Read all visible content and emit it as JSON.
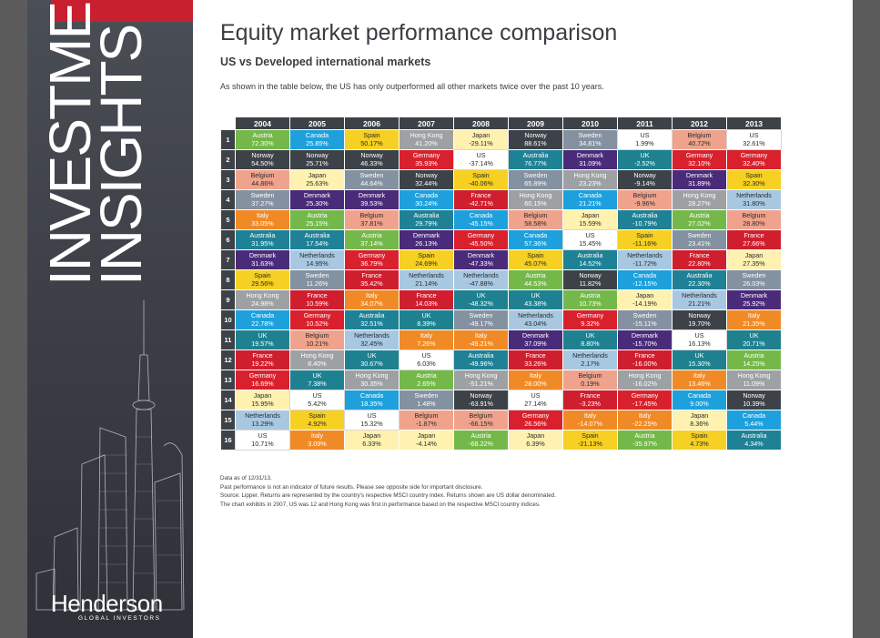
{
  "sidebar": {
    "title_line1": "INVESTMENT",
    "title_line2": "INSIGHTS",
    "logo_name": "Henderson",
    "logo_sub": "GLOBAL INVESTORS"
  },
  "header": {
    "title": "Equity market performance comparison",
    "subtitle": "US vs Developed international markets",
    "intro": "As shown in the table below, the US has only outperformed all other markets twice over the past 10 years."
  },
  "colors": {
    "Austria": "#74b84a",
    "Canada": "#1ea0dc",
    "Spain": "#f6d022",
    "Hong Kong": "#9ea1a4",
    "Japan": "#fff1b0",
    "Norway": "#3d4248",
    "Sweden": "#8491a0",
    "US": "#ffffff",
    "Belgium": "#f0a38c",
    "Germany": "#d8212d",
    "Australia": "#1f8195",
    "Denmark": "#4a2b7a",
    "UK": "#1f8190",
    "France": "#cf1f2e",
    "Italy": "#f08a26",
    "Netherlands": "#a8c8e2"
  },
  "years": [
    "2004",
    "2005",
    "2006",
    "2007",
    "2008",
    "2009",
    "2010",
    "2011",
    "2012",
    "2013"
  ],
  "ranks": [
    "1",
    "2",
    "3",
    "4",
    "5",
    "6",
    "7",
    "8",
    "9",
    "10",
    "11",
    "12",
    "13",
    "14",
    "15",
    "16"
  ],
  "table": [
    [
      [
        "Austria",
        "72.30%"
      ],
      [
        "Norway",
        "54.50%"
      ],
      [
        "Belgium",
        "44.86%"
      ],
      [
        "Sweden",
        "37.27%"
      ],
      [
        "Italy",
        "33.05%"
      ],
      [
        "Australia",
        "31.95%"
      ],
      [
        "Denmark",
        "31.63%"
      ],
      [
        "Spain",
        "29.56%"
      ],
      [
        "Hong Kong",
        "24.98%"
      ],
      [
        "Canada",
        "22.78%"
      ],
      [
        "UK",
        "19.57%"
      ],
      [
        "France",
        "19.22%"
      ],
      [
        "Germany",
        "16.69%"
      ],
      [
        "Japan",
        "15.95%"
      ],
      [
        "Netherlands",
        "13.29%"
      ],
      [
        "US",
        "10.71%"
      ]
    ],
    [
      [
        "Canada",
        "25.85%"
      ],
      [
        "Norway",
        "25.71%"
      ],
      [
        "Japan",
        "25.63%"
      ],
      [
        "Denmark",
        "25.30%"
      ],
      [
        "Austria",
        "25.15%"
      ],
      [
        "Australia",
        "17.54%"
      ],
      [
        "Netherlands",
        "14.95%"
      ],
      [
        "Sweden",
        "11.26%"
      ],
      [
        "France",
        "10.59%"
      ],
      [
        "Germany",
        "10.52%"
      ],
      [
        "Belgium",
        "10.21%"
      ],
      [
        "Hong Kong",
        "8.40%"
      ],
      [
        "UK",
        "7.38%"
      ],
      [
        "US",
        "5.42%"
      ],
      [
        "Spain",
        "4.92%"
      ],
      [
        "Italy",
        "3.09%"
      ]
    ],
    [
      [
        "Spain",
        "50.17%"
      ],
      [
        "Norway",
        "46.33%"
      ],
      [
        "Sweden",
        "44.64%"
      ],
      [
        "Denmark",
        "39.53%"
      ],
      [
        "Belgium",
        "37.81%"
      ],
      [
        "Austria",
        "37.14%"
      ],
      [
        "Germany",
        "36.79%"
      ],
      [
        "France",
        "35.42%"
      ],
      [
        "Italy",
        "34.07%"
      ],
      [
        "Australia",
        "32.51%"
      ],
      [
        "Netherlands",
        "32.45%"
      ],
      [
        "UK",
        "30.67%"
      ],
      [
        "Hong Kong",
        "30.35%"
      ],
      [
        "Canada",
        "18.35%"
      ],
      [
        "US",
        "15.32%"
      ],
      [
        "Japan",
        "6.33%"
      ]
    ],
    [
      [
        "Hong Kong",
        "41.20%"
      ],
      [
        "Germany",
        "35.93%"
      ],
      [
        "Norway",
        "32.44%"
      ],
      [
        "Canada",
        "30.24%"
      ],
      [
        "Australia",
        "29.79%"
      ],
      [
        "Denmark",
        "26.13%"
      ],
      [
        "Spain",
        "24.69%"
      ],
      [
        "Netherlands",
        "21.14%"
      ],
      [
        "France",
        "14.03%"
      ],
      [
        "UK",
        "8.39%"
      ],
      [
        "Italy",
        "7.26%"
      ],
      [
        "US",
        "6.03%"
      ],
      [
        "Austria",
        "2.65%"
      ],
      [
        "Sweden",
        "1.48%"
      ],
      [
        "Belgium",
        "-1.87%"
      ],
      [
        "Japan",
        "-4.14%"
      ]
    ],
    [
      [
        "Japan",
        "-29.11%"
      ],
      [
        "US",
        "-37.14%"
      ],
      [
        "Spain",
        "-40.06%"
      ],
      [
        "France",
        "-42.71%"
      ],
      [
        "Canada",
        "-45.15%"
      ],
      [
        "Germany",
        "-45.50%"
      ],
      [
        "Denmark",
        "-47.33%"
      ],
      [
        "Netherlands",
        "-47.88%"
      ],
      [
        "UK",
        "-48.32%"
      ],
      [
        "Sweden",
        "-49.17%"
      ],
      [
        "Italy",
        "-49.21%"
      ],
      [
        "Australia",
        "-49.96%"
      ],
      [
        "Hong Kong",
        "-51.21%"
      ],
      [
        "Norway",
        "-63.91%"
      ],
      [
        "Belgium",
        "-66.15%"
      ],
      [
        "Austria",
        "-68.22%"
      ]
    ],
    [
      [
        "Norway",
        "88.61%"
      ],
      [
        "Australia",
        "76.77%"
      ],
      [
        "Sweden",
        "65.89%"
      ],
      [
        "Hong Kong",
        "60.15%"
      ],
      [
        "Belgium",
        "58.58%"
      ],
      [
        "Canada",
        "57.36%"
      ],
      [
        "Spain",
        "45.07%"
      ],
      [
        "Austria",
        "44.53%"
      ],
      [
        "UK",
        "43.38%"
      ],
      [
        "Netherlands",
        "43.04%"
      ],
      [
        "Denmark",
        "37.09%"
      ],
      [
        "France",
        "33.26%"
      ],
      [
        "Italy",
        "28.00%"
      ],
      [
        "US",
        "27.14%"
      ],
      [
        "Germany",
        "26.56%"
      ],
      [
        "Japan",
        "6.39%"
      ]
    ],
    [
      [
        "Sweden",
        "34.81%"
      ],
      [
        "Denmark",
        "31.09%"
      ],
      [
        "Hong Kong",
        "23.23%"
      ],
      [
        "Canada",
        "21.21%"
      ],
      [
        "Japan",
        "15.59%"
      ],
      [
        "US",
        "15.45%"
      ],
      [
        "Australia",
        "14.52%"
      ],
      [
        "Norway",
        "11.82%"
      ],
      [
        "Austria",
        "10.73%"
      ],
      [
        "Germany",
        "9.32%"
      ],
      [
        "UK",
        "8.80%"
      ],
      [
        "Netherlands",
        "2.17%"
      ],
      [
        "Belgium",
        "0.19%"
      ],
      [
        "France",
        "-3.23%"
      ],
      [
        "Italy",
        "-14.07%"
      ],
      [
        "Spain",
        "-21.13%"
      ]
    ],
    [
      [
        "US",
        "1.99%"
      ],
      [
        "UK",
        "-2.52%"
      ],
      [
        "Norway",
        "-9.14%"
      ],
      [
        "Belgium",
        "-9.96%"
      ],
      [
        "Australia",
        "-10.79%"
      ],
      [
        "Spain",
        "-11.16%"
      ],
      [
        "Netherlands",
        "-11.72%"
      ],
      [
        "Canada",
        "-12.15%"
      ],
      [
        "Japan",
        "-14.19%"
      ],
      [
        "Sweden",
        "-15.11%"
      ],
      [
        "Denmark",
        "-15.70%"
      ],
      [
        "France",
        "-16.00%"
      ],
      [
        "Hong Kong",
        "-16.02%"
      ],
      [
        "Germany",
        "-17.45%"
      ],
      [
        "Italy",
        "-22.25%"
      ],
      [
        "Austria",
        "-35.97%"
      ]
    ],
    [
      [
        "Belgium",
        "40.72%"
      ],
      [
        "Germany",
        "32.10%"
      ],
      [
        "Denmark",
        "31.89%"
      ],
      [
        "Hong Kong",
        "28.27%"
      ],
      [
        "Austria",
        "27.02%"
      ],
      [
        "Sweden",
        "23.41%"
      ],
      [
        "France",
        "22.80%"
      ],
      [
        "Australia",
        "22.30%"
      ],
      [
        "Netherlands",
        "21.21%"
      ],
      [
        "Norway",
        "19.70%"
      ],
      [
        "US",
        "16.13%"
      ],
      [
        "UK",
        "15.30%"
      ],
      [
        "Italy",
        "13.46%"
      ],
      [
        "Canada",
        "9.00%"
      ],
      [
        "Japan",
        "8.36%"
      ],
      [
        "Spain",
        "4.73%"
      ]
    ],
    [
      [
        "US",
        "32.61%"
      ],
      [
        "Germany",
        "32.40%"
      ],
      [
        "Spain",
        "32.30%"
      ],
      [
        "Netherlands",
        "31.80%"
      ],
      [
        "Belgium",
        "28.80%"
      ],
      [
        "France",
        "27.66%"
      ],
      [
        "Japan",
        "27.35%"
      ],
      [
        "Sweden",
        "26.03%"
      ],
      [
        "Denmark",
        "25.92%"
      ],
      [
        "Italy",
        "21.35%"
      ],
      [
        "UK",
        "20.71%"
      ],
      [
        "Austria",
        "14.25%"
      ],
      [
        "Hong Kong",
        "11.09%"
      ],
      [
        "Norway",
        "10.39%"
      ],
      [
        "Canada",
        "5.44%"
      ],
      [
        "Australia",
        "4.34%"
      ]
    ]
  ],
  "notes": [
    "Data as of 12/31/13.",
    "Past performance is not an indicator of future results.  Please see opposite side for important disclosure.",
    "Source: Lipper.  Returns are represented by the country's respective MSCI country index.  Returns shown are US dollar denominated.",
    "The chart exhibits in 2007, US was 12 and Hong Kong was first in performance based on the respective MSCI country indices."
  ]
}
